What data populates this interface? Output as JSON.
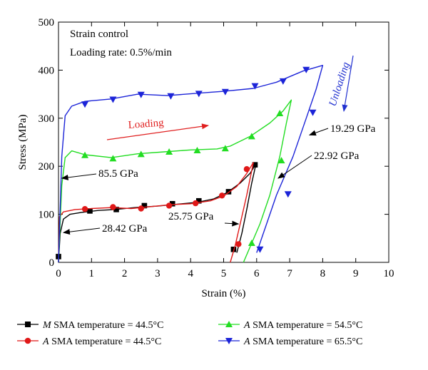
{
  "chart_data": {
    "type": "line",
    "xlabel": "Strain (%)",
    "ylabel": "Stress (MPa)",
    "xlim": [
      0,
      10
    ],
    "ylim": [
      0,
      500
    ],
    "xticks": [
      0,
      1,
      2,
      3,
      4,
      5,
      6,
      7,
      8,
      9,
      10
    ],
    "yticks": [
      0,
      100,
      200,
      300,
      400,
      500
    ],
    "grid": false,
    "legend_position": "bottom",
    "notes": [
      "Strain control",
      "Loading rate: 0.5%/min"
    ],
    "direction_labels": [
      {
        "text": "Loading",
        "color": "#e02020"
      },
      {
        "text": "Unloading",
        "color": "#2030d0"
      }
    ],
    "annotations": [
      {
        "text": "85.5 GPa",
        "points_to": {
          "x": 0.1,
          "y": 175
        }
      },
      {
        "text": "28.42 GPa",
        "points_to": {
          "x": 0.15,
          "y": 62
        }
      },
      {
        "text": "25.75 GPa",
        "points_to": {
          "x": 5.45,
          "y": 80
        }
      },
      {
        "text": "22.92 GPa",
        "points_to": {
          "x": 6.65,
          "y": 175
        }
      },
      {
        "text": "19.29 GPa",
        "points_to": {
          "x": 7.6,
          "y": 265
        }
      }
    ],
    "series": [
      {
        "name": "M SMA temperature = 44.5°C",
        "name_prefix": "M",
        "name_rest": " SMA temperature = 44.5°C",
        "color": "#000000",
        "marker": "square",
        "points": [
          [
            0,
            0
          ],
          [
            0.05,
            60
          ],
          [
            0.15,
            90
          ],
          [
            0.35,
            100
          ],
          [
            0.7,
            104
          ],
          [
            1.2,
            108
          ],
          [
            1.7,
            110
          ],
          [
            2.3,
            114
          ],
          [
            3.0,
            117
          ],
          [
            3.6,
            121
          ],
          [
            4.2,
            125
          ],
          [
            4.7,
            132
          ],
          [
            5.1,
            145
          ],
          [
            5.5,
            165
          ],
          [
            5.8,
            185
          ],
          [
            5.98,
            205
          ],
          [
            5.85,
            165
          ],
          [
            5.7,
            110
          ],
          [
            5.55,
            60
          ],
          [
            5.4,
            20
          ]
        ],
        "markers": [
          [
            0,
            12
          ],
          [
            0.95,
            107
          ],
          [
            1.75,
            110
          ],
          [
            2.6,
            118
          ],
          [
            3.45,
            122
          ],
          [
            4.25,
            128
          ],
          [
            5.15,
            147
          ],
          [
            5.95,
            203
          ],
          [
            5.3,
            27
          ]
        ]
      },
      {
        "name": "A SMA temperature = 44.5°C",
        "name_prefix": "A",
        "name_rest": " SMA temperature = 44.5°C",
        "color": "#e01818",
        "marker": "circle",
        "points": [
          [
            0,
            0
          ],
          [
            0.03,
            95
          ],
          [
            0.15,
            105
          ],
          [
            0.5,
            110
          ],
          [
            1.0,
            112
          ],
          [
            1.6,
            114
          ],
          [
            2.2,
            112
          ],
          [
            2.8,
            116
          ],
          [
            3.4,
            120
          ],
          [
            4.0,
            122
          ],
          [
            4.6,
            128
          ],
          [
            5.0,
            138
          ],
          [
            5.4,
            158
          ],
          [
            5.7,
            185
          ],
          [
            5.9,
            208
          ],
          [
            5.7,
            140
          ],
          [
            5.5,
            80
          ],
          [
            5.35,
            35
          ],
          [
            5.2,
            0
          ]
        ],
        "markers": [
          [
            0.8,
            111
          ],
          [
            1.65,
            115
          ],
          [
            2.5,
            112
          ],
          [
            3.35,
            118
          ],
          [
            4.15,
            123
          ],
          [
            4.95,
            139
          ],
          [
            5.7,
            194
          ],
          [
            5.45,
            38
          ]
        ]
      },
      {
        "name": "A SMA temperature = 54.5°C",
        "name_prefix": "A",
        "name_rest": " SMA temperature = 54.5°C",
        "color": "#22dd22",
        "marker": "triangle-up",
        "points": [
          [
            0,
            0
          ],
          [
            0.1,
            160
          ],
          [
            0.2,
            218
          ],
          [
            0.4,
            232
          ],
          [
            0.8,
            224
          ],
          [
            1.6,
            218
          ],
          [
            2.4,
            226
          ],
          [
            3.2,
            230
          ],
          [
            4.0,
            234
          ],
          [
            4.8,
            236
          ],
          [
            5.2,
            242
          ],
          [
            5.8,
            262
          ],
          [
            6.4,
            290
          ],
          [
            6.8,
            315
          ],
          [
            7.05,
            338
          ],
          [
            6.9,
            290
          ],
          [
            6.7,
            220
          ],
          [
            6.4,
            140
          ],
          [
            6.1,
            80
          ],
          [
            5.85,
            40
          ],
          [
            5.6,
            0
          ]
        ],
        "markers": [
          [
            0.8,
            223
          ],
          [
            1.65,
            216
          ],
          [
            2.5,
            225
          ],
          [
            3.35,
            230
          ],
          [
            4.2,
            233
          ],
          [
            5.05,
            237
          ],
          [
            5.85,
            262
          ],
          [
            6.7,
            310
          ],
          [
            6.75,
            212
          ],
          [
            5.85,
            40
          ]
        ]
      },
      {
        "name": "A SMA temperature = 65.5°C",
        "name_prefix": "A",
        "name_rest": " SMA temperature = 65.5°C",
        "color": "#1c24d8",
        "marker": "triangle-down",
        "points": [
          [
            0,
            0
          ],
          [
            0.1,
            220
          ],
          [
            0.2,
            305
          ],
          [
            0.4,
            325
          ],
          [
            0.8,
            335
          ],
          [
            1.6,
            340
          ],
          [
            2.4,
            350
          ],
          [
            3.3,
            347
          ],
          [
            4.2,
            352
          ],
          [
            5.0,
            356
          ],
          [
            5.9,
            362
          ],
          [
            6.6,
            375
          ],
          [
            7.4,
            398
          ],
          [
            8.0,
            410
          ],
          [
            7.8,
            360
          ],
          [
            7.5,
            300
          ],
          [
            7.1,
            220
          ],
          [
            6.6,
            140
          ],
          [
            6.3,
            80
          ],
          [
            6.0,
            20
          ]
        ],
        "markers": [
          [
            0.8,
            329
          ],
          [
            1.65,
            339
          ],
          [
            2.5,
            349
          ],
          [
            3.4,
            346
          ],
          [
            4.25,
            351
          ],
          [
            5.05,
            355
          ],
          [
            5.95,
            367
          ],
          [
            6.8,
            377
          ],
          [
            7.5,
            401
          ],
          [
            7.7,
            312
          ],
          [
            6.95,
            142
          ],
          [
            6.1,
            27
          ]
        ]
      }
    ]
  }
}
